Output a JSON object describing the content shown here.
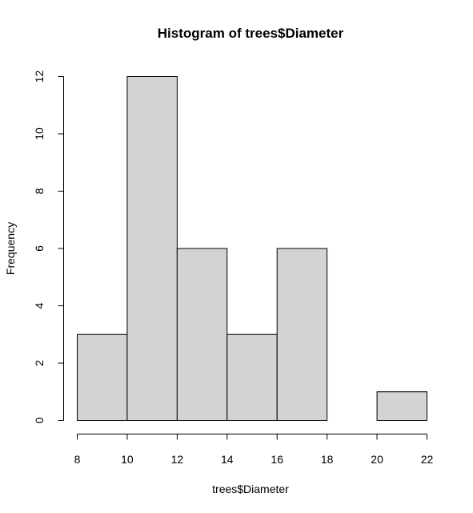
{
  "chart_data": {
    "type": "bar",
    "title": "Histogram of trees$Diameter",
    "xlabel": "trees$Diameter",
    "ylabel": "Frequency",
    "bins": [
      {
        "start": 8,
        "end": 10,
        "value": 3
      },
      {
        "start": 10,
        "end": 12,
        "value": 12
      },
      {
        "start": 12,
        "end": 14,
        "value": 6
      },
      {
        "start": 14,
        "end": 16,
        "value": 3
      },
      {
        "start": 16,
        "end": 18,
        "value": 6
      },
      {
        "start": 18,
        "end": 20,
        "value": 0
      },
      {
        "start": 20,
        "end": 22,
        "value": 1
      }
    ],
    "xlim": [
      8,
      22
    ],
    "ylim": [
      0,
      12
    ],
    "x_ticks": [
      "8",
      "10",
      "12",
      "14",
      "16",
      "18",
      "20",
      "22"
    ],
    "y_ticks": [
      "0",
      "2",
      "4",
      "6",
      "8",
      "10",
      "12"
    ],
    "grid": false,
    "bar_fill": "#d3d3d3",
    "bar_stroke": "#000000"
  }
}
